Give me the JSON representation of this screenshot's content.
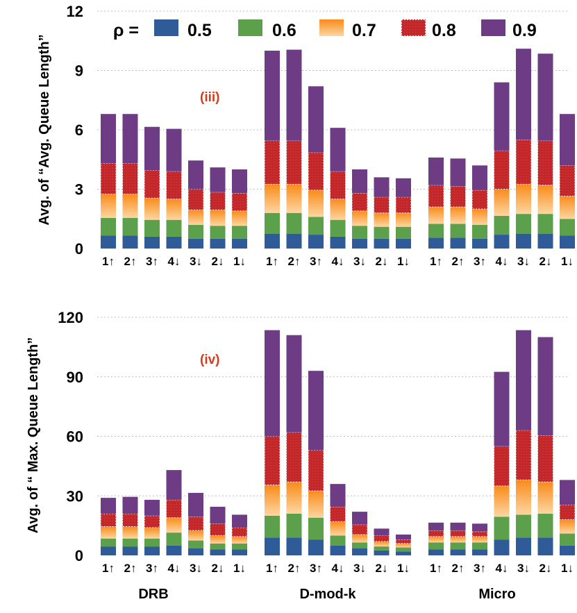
{
  "legend": {
    "symbol": "ρ =",
    "items": [
      {
        "label": "0.5",
        "color": "#2f5b99"
      },
      {
        "label": "0.6",
        "color": "#5da04c"
      },
      {
        "label": "0.7",
        "color": "#f58d22"
      },
      {
        "label": "0.8",
        "color": "#c8282b"
      },
      {
        "label": "0.9",
        "color": "#6e3c85"
      }
    ]
  },
  "groups": [
    "DRB",
    "D-mod-k",
    "Micro"
  ],
  "chart_data": [
    {
      "type": "bar",
      "stacked": true,
      "panel_label": "(iii)",
      "ylabel": "Avg. of “Avg. Queue Length”",
      "ylim": [
        0,
        12
      ],
      "yticks": [
        "0",
        "3",
        "6",
        "9",
        "12"
      ],
      "groups": [
        {
          "name": "DRB",
          "categories": [
            "1↑",
            "2↑",
            "3↑",
            "4↓",
            "3↓",
            "2↓",
            "1↓"
          ],
          "totals": {
            "0.5": [
              0.65,
              0.65,
              0.6,
              0.6,
              0.5,
              0.5,
              0.5
            ],
            "0.6": [
              1.55,
              1.55,
              1.45,
              1.45,
              1.2,
              1.15,
              1.15
            ],
            "0.7": [
              2.75,
              2.75,
              2.55,
              2.5,
              1.95,
              1.95,
              1.9
            ],
            "0.8": [
              4.3,
              4.3,
              3.95,
              3.9,
              3.0,
              2.85,
              2.8
            ],
            "0.9": [
              6.8,
              6.8,
              6.15,
              6.05,
              4.45,
              4.1,
              4.0
            ]
          }
        },
        {
          "name": "D-mod-k",
          "categories": [
            "1↑",
            "2↑",
            "3↑",
            "4↓",
            "3↓",
            "2↓",
            "1↓"
          ],
          "totals": {
            "0.5": [
              0.75,
              0.75,
              0.7,
              0.6,
              0.5,
              0.5,
              0.5
            ],
            "0.6": [
              1.8,
              1.8,
              1.6,
              1.45,
              1.15,
              1.1,
              1.1
            ],
            "0.7": [
              3.25,
              3.25,
              2.95,
              2.5,
              1.9,
              1.8,
              1.8
            ],
            "0.8": [
              5.45,
              5.45,
              4.85,
              3.9,
              2.8,
              2.6,
              2.6
            ],
            "0.9": [
              10.0,
              10.05,
              8.2,
              6.1,
              4.0,
              3.6,
              3.55
            ]
          }
        },
        {
          "name": "Micro",
          "categories": [
            "1↑",
            "2↑",
            "3↑",
            "4↓",
            "3↓",
            "2↓",
            "1↓"
          ],
          "totals": {
            "0.5": [
              0.55,
              0.55,
              0.5,
              0.7,
              0.75,
              0.75,
              0.65
            ],
            "0.6": [
              1.25,
              1.25,
              1.2,
              1.65,
              1.75,
              1.75,
              1.5
            ],
            "0.7": [
              2.1,
              2.1,
              2.0,
              3.0,
              3.25,
              3.2,
              2.65
            ],
            "0.8": [
              3.2,
              3.15,
              2.95,
              4.95,
              5.5,
              5.45,
              4.2
            ],
            "0.9": [
              4.6,
              4.55,
              4.2,
              8.4,
              10.1,
              9.85,
              6.8
            ]
          }
        }
      ]
    },
    {
      "type": "bar",
      "stacked": true,
      "panel_label": "(iv)",
      "ylabel": "Avg. of “ Max. Queue Length”",
      "ylim": [
        0,
        120
      ],
      "yticks": [
        "0",
        "30",
        "60",
        "90",
        "120"
      ],
      "groups": [
        {
          "name": "DRB",
          "categories": [
            "1↑",
            "2↑",
            "3↑",
            "4↓",
            "3↓",
            "2↓",
            "1↓"
          ],
          "totals": {
            "0.5": [
              4.5,
              4.5,
              4.5,
              5.0,
              3.5,
              3.0,
              3.0
            ],
            "0.6": [
              8.5,
              8.5,
              8.5,
              11.5,
              7.5,
              6.0,
              6.0
            ],
            "0.7": [
              14.5,
              14.5,
              14.0,
              19.0,
              12.5,
              10.0,
              9.5
            ],
            "0.8": [
              21.0,
              21.0,
              20.0,
              28.0,
              19.5,
              16.0,
              14.0
            ],
            "0.9": [
              29.0,
              29.5,
              28.0,
              43.0,
              31.5,
              24.5,
              20.5
            ]
          }
        },
        {
          "name": "D-mod-k",
          "categories": [
            "1↑",
            "2↑",
            "3↑",
            "4↓",
            "3↓",
            "2↓",
            "1↓"
          ],
          "totals": {
            "0.5": [
              9.0,
              9.0,
              8.0,
              5.0,
              3.5,
              2.5,
              2.0
            ],
            "0.6": [
              20.0,
              21.0,
              19.0,
              10.0,
              6.5,
              4.5,
              4.0
            ],
            "0.7": [
              35.5,
              37.0,
              32.5,
              17.0,
              10.5,
              7.0,
              6.0
            ],
            "0.8": [
              60.0,
              62.0,
              53.0,
              24.5,
              15.5,
              10.0,
              8.0
            ],
            "0.9": [
              113.5,
              111.0,
              93.0,
              36.0,
              22.0,
              13.5,
              10.5
            ]
          }
        },
        {
          "name": "Micro",
          "categories": [
            "1↑",
            "2↑",
            "3↑",
            "4↓",
            "3↓",
            "2↓",
            "1↓"
          ],
          "totals": {
            "0.5": [
              3.0,
              3.0,
              3.0,
              8.0,
              9.0,
              9.0,
              5.0
            ],
            "0.6": [
              6.5,
              6.5,
              6.5,
              19.5,
              20.5,
              21.0,
              11.0
            ],
            "0.7": [
              9.5,
              9.5,
              9.5,
              35.0,
              38.0,
              37.0,
              18.0
            ],
            "0.8": [
              12.5,
              12.5,
              12.0,
              55.0,
              63.0,
              60.5,
              25.5
            ],
            "0.9": [
              16.5,
              16.5,
              16.0,
              92.5,
              113.5,
              110.0,
              38.0
            ]
          }
        }
      ]
    }
  ]
}
